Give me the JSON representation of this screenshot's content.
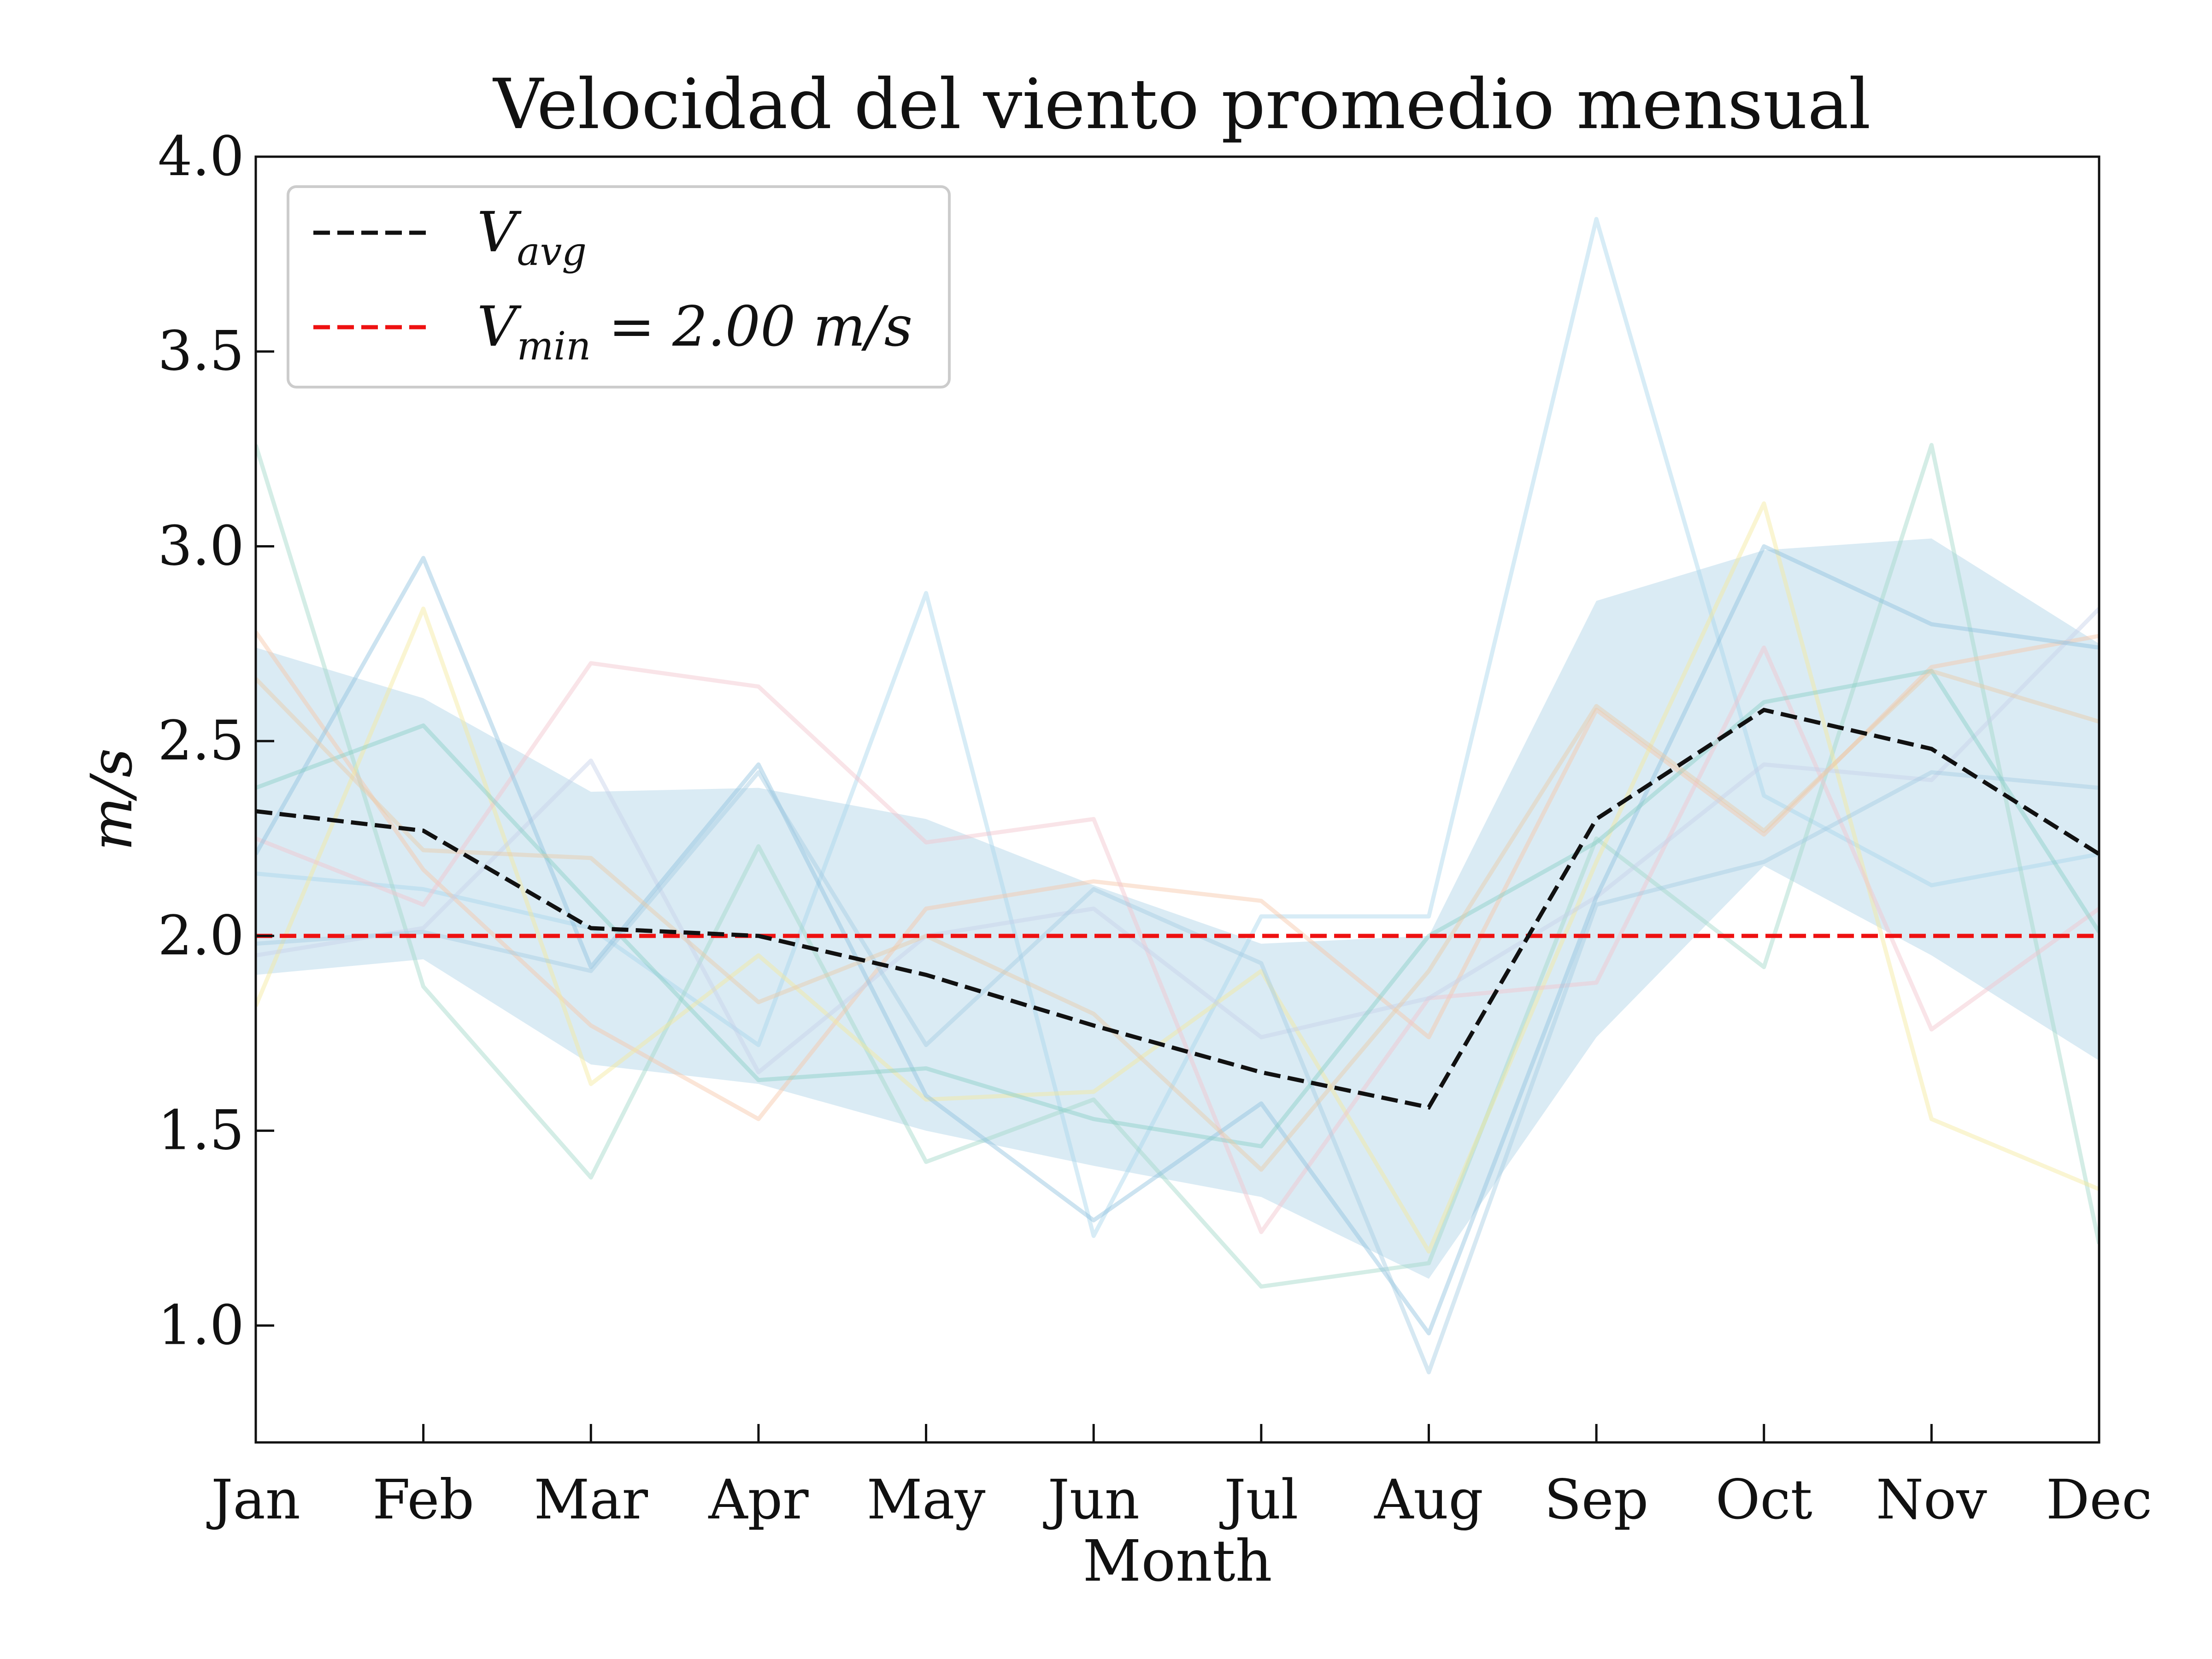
{
  "chart_data": {
    "type": "line",
    "title": "Velocidad del viento promedio mensual",
    "xlabel": "Month",
    "ylabel": "m/s",
    "categories": [
      "Jan",
      "Feb",
      "Mar",
      "Apr",
      "May",
      "Jun",
      "Jul",
      "Aug",
      "Sep",
      "Oct",
      "Nov",
      "Dec"
    ],
    "ylim": [
      0.7,
      4.0
    ],
    "yticks": [
      "1.0",
      "1.5",
      "2.0",
      "2.5",
      "3.0",
      "3.5",
      "4.0"
    ],
    "grid": false,
    "legend_position": "top-left",
    "legend": [
      {
        "main": "V",
        "sub": "avg",
        "rest": "",
        "style": "dashed",
        "color": "#111111"
      },
      {
        "main": "V",
        "sub": "min",
        "rest": " = 2.00 m/s",
        "style": "dashed",
        "color": "#ee1111"
      }
    ],
    "avg": [
      2.32,
      2.27,
      2.02,
      2.0,
      1.9,
      1.77,
      1.65,
      1.56,
      2.3,
      2.58,
      2.48,
      2.21
    ],
    "min_threshold": 2.0,
    "band": {
      "upper": [
        2.74,
        2.61,
        2.37,
        2.38,
        2.3,
        2.13,
        1.98,
        2.0,
        2.86,
        2.99,
        3.02,
        2.75
      ],
      "lower": [
        1.9,
        1.94,
        1.67,
        1.62,
        1.5,
        1.41,
        1.33,
        1.12,
        1.74,
        2.18,
        1.95,
        1.68
      ],
      "color": "#9ecae1"
    },
    "series": [
      {
        "color": "#a6d5ec",
        "values": [
          2.16,
          2.12,
          2.02,
          1.72,
          2.88,
          1.23,
          2.05,
          2.05,
          3.84,
          2.36,
          2.13,
          2.21
        ]
      },
      {
        "color": "#9fd6c8",
        "values": [
          3.26,
          1.87,
          1.38,
          2.23,
          1.42,
          1.58,
          1.1,
          1.16,
          2.25,
          1.92,
          3.26,
          1.21
        ]
      },
      {
        "color": "#f7c5a6",
        "values": [
          2.78,
          2.17,
          1.77,
          1.53,
          2.07,
          2.14,
          2.09,
          1.74,
          2.58,
          2.26,
          2.69,
          2.77
        ]
      },
      {
        "color": "#f5e99b",
        "values": [
          1.82,
          2.84,
          1.62,
          1.95,
          1.58,
          1.6,
          1.91,
          1.19,
          2.19,
          3.11,
          1.53,
          1.35
        ]
      },
      {
        "color": "#f2c4cd",
        "values": [
          2.25,
          2.08,
          2.7,
          2.64,
          2.24,
          2.3,
          1.24,
          1.84,
          1.88,
          2.74,
          1.76,
          2.07
        ]
      },
      {
        "color": "#c6d0e8",
        "values": [
          1.95,
          2.02,
          2.45,
          1.65,
          2.0,
          2.07,
          1.74,
          1.84,
          2.1,
          2.44,
          2.4,
          2.84
        ]
      },
      {
        "color": "#8fc0de",
        "values": [
          2.21,
          2.97,
          1.92,
          2.44,
          1.59,
          1.27,
          1.57,
          0.98,
          2.1,
          3.0,
          2.8,
          2.74
        ]
      },
      {
        "color": "#a3cbe3",
        "values": [
          1.98,
          2.01,
          1.91,
          2.42,
          1.72,
          2.12,
          1.93,
          0.88,
          2.08,
          2.19,
          2.42,
          2.38
        ]
      },
      {
        "color": "#88cfc5",
        "values": [
          2.38,
          2.54,
          2.08,
          1.63,
          1.66,
          1.53,
          1.46,
          2.0,
          2.24,
          2.6,
          2.68,
          2.01
        ]
      },
      {
        "color": "#e9c9a6",
        "values": [
          2.66,
          2.22,
          2.2,
          1.83,
          2.0,
          1.8,
          1.4,
          1.91,
          2.59,
          2.27,
          2.68,
          2.55
        ]
      }
    ]
  }
}
